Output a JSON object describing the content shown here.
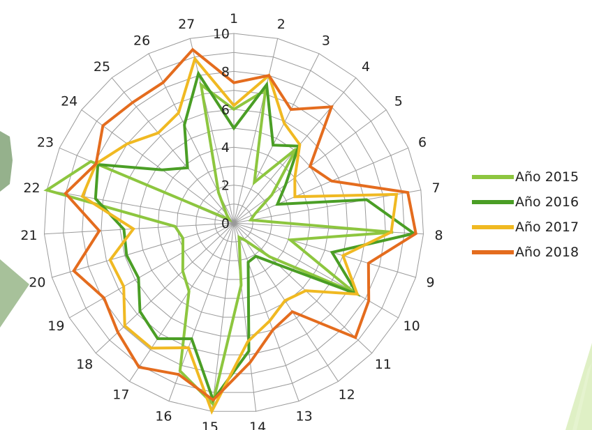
{
  "chart_data": {
    "type": "radar",
    "categories": [
      "1",
      "2",
      "3",
      "4",
      "5",
      "6",
      "7",
      "8",
      "9",
      "10",
      "11",
      "12",
      "13",
      "14",
      "15",
      "16",
      "17",
      "18",
      "19",
      "20",
      "21",
      "22",
      "23",
      "24",
      "25",
      "26",
      "27"
    ],
    "rlim": [
      0,
      10
    ],
    "ticks": [
      "0",
      "2",
      "4",
      "6",
      "8",
      "10"
    ],
    "grid": true,
    "legend_position": "right",
    "series": [
      {
        "name": "Año 2015",
        "color": "#8dc63f",
        "values": [
          6,
          7.2,
          2.4,
          5.1,
          2.5,
          1.2,
          0.9,
          8.4,
          3.1,
          7.3,
          2.6,
          1.1,
          0.8,
          3.3,
          9.6,
          8.3,
          4.3,
          3.7,
          3.1,
          2.8,
          3.1,
          10,
          8.2,
          0.3,
          0.6,
          1.8,
          7.5
        ]
      },
      {
        "name": "Año 2016",
        "color": "#4a9e25",
        "values": [
          5,
          7.5,
          4.6,
          5.3,
          3.4,
          2.5,
          7.1,
          9.5,
          5.4,
          7.5,
          3.2,
          2.1,
          2.2,
          6.8,
          9.4,
          6.5,
          7.3,
          6.8,
          5.8,
          5.9,
          5.8,
          7.4,
          7.8,
          4.7,
          3.8,
          5.8,
          8.1
        ]
      },
      {
        "name": "Año 2017",
        "color": "#f0b922",
        "values": [
          6.2,
          8,
          5.9,
          5.4,
          4,
          3.5,
          8.7,
          8.3,
          6,
          7.5,
          5.2,
          4.9,
          5.5,
          6.3,
          10,
          7,
          7.9,
          7.9,
          6.7,
          6.8,
          5.3,
          8.1,
          7.9,
          7,
          6.2,
          6.5,
          8.9
        ]
      },
      {
        "name": "Año 2018",
        "color": "#e46c1e",
        "values": [
          7.4,
          8,
          6.7,
          8,
          5,
          5.6,
          9.3,
          9.6,
          7.4,
          8.2,
          8.8,
          5.6,
          6,
          7.4,
          9.4,
          8.5,
          9.1,
          8.4,
          7.9,
          8.8,
          7.1,
          9,
          7.9,
          8.6,
          8.3,
          8.3,
          9.4
        ]
      }
    ]
  }
}
